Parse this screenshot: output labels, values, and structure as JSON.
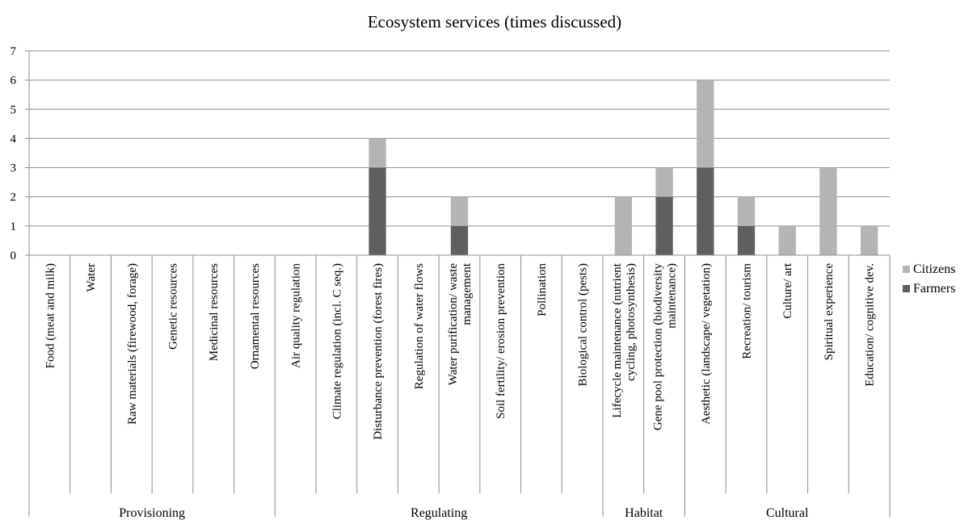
{
  "chart_data": {
    "type": "bar",
    "stacked": true,
    "title": "Ecosystem services (times discussed)",
    "xlabel": "",
    "ylabel": "",
    "ylim": [
      0,
      7
    ],
    "yticks": [
      0,
      1,
      2,
      3,
      4,
      5,
      6,
      7
    ],
    "grid": true,
    "legend_position": "right",
    "categories": [
      "Food (meat and milk)",
      "Water",
      "Raw materials (firewood, forage)",
      "Genetic resources",
      "Medicinal resources",
      "Ornamental resources",
      "Air quality regulation",
      "Climate regulation (incl. C seq.)",
      "Disturbance prevention (forest fires)",
      "Regulation of water flows",
      "Water purification/ waste management",
      "Soil fertility/ erosion prevention",
      "Pollination",
      "Biological control (pests)",
      "Lifecycle maintenance (nutrient cycling, photosynthesis)",
      "Gene pool protection (biodiversity maintenance)",
      "Aesthetic (landscape/ vegetation)",
      "Recreation/ tourism",
      "Culture/ art",
      "Spiritual experience",
      "Education/ cognitive dev."
    ],
    "category_lines": [
      [
        "Food (meat and milk)"
      ],
      [
        "Water"
      ],
      [
        "Raw materials (firewood, forage)"
      ],
      [
        "Genetic resources"
      ],
      [
        "Medicinal resources"
      ],
      [
        "Ornamental resources"
      ],
      [
        "Air quality regulation"
      ],
      [
        "Climate regulation (incl. C seq.)"
      ],
      [
        "Disturbance prevention (forest fires)"
      ],
      [
        "Regulation of water flows"
      ],
      [
        "Water purification/ waste",
        "management"
      ],
      [
        "Soil fertility/ erosion prevention"
      ],
      [
        "Pollination"
      ],
      [
        "Biological control (pests)"
      ],
      [
        "Lifecycle maintenance (nutrient",
        "cycling, photosynthesis)"
      ],
      [
        "Gene pool protection (biodiversity",
        "maintenance)"
      ],
      [
        "Aesthetic (landscape/ vegetation)"
      ],
      [
        "Recreation/ tourism"
      ],
      [
        "Culture/ art"
      ],
      [
        "Spiritual experience"
      ],
      [
        "Education/ cognitive dev."
      ]
    ],
    "groups": [
      {
        "name": "Provisioning",
        "count": 6
      },
      {
        "name": "Regulating",
        "count": 8
      },
      {
        "name": "Habitat",
        "count": 2
      },
      {
        "name": "Cultural",
        "count": 5
      }
    ],
    "series": [
      {
        "name": "Farmers",
        "color": "#5f5f5f",
        "values": [
          0,
          0,
          0,
          0,
          0,
          0,
          0,
          0,
          3,
          0,
          1,
          0,
          0,
          0,
          0,
          2,
          3,
          1,
          0,
          0,
          0
        ]
      },
      {
        "name": "Citizens",
        "color": "#b4b4b4",
        "values": [
          0,
          0,
          0,
          0,
          0,
          0,
          0,
          0,
          1,
          0,
          1,
          0,
          0,
          0,
          2,
          1,
          3,
          1,
          1,
          3,
          1
        ]
      }
    ],
    "legend_order": [
      "Citizens",
      "Farmers"
    ]
  }
}
